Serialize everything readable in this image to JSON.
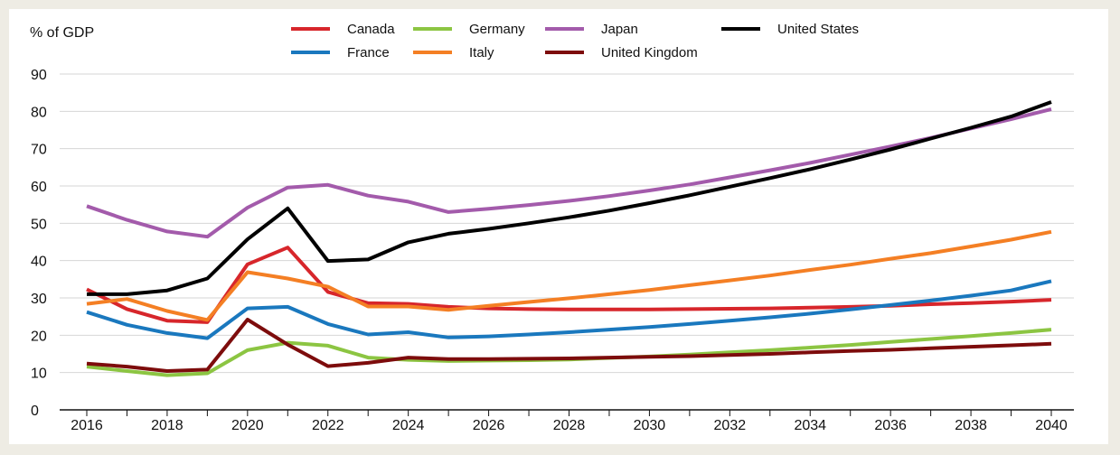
{
  "chart_data": {
    "type": "line",
    "ylabel": "% of GDP",
    "ylim": [
      0,
      90
    ],
    "y_ticks": [
      0,
      10,
      20,
      30,
      40,
      50,
      60,
      70,
      80,
      90
    ],
    "x_ticks": [
      "2016",
      "2018",
      "2020",
      "2022",
      "2024",
      "2026",
      "2028",
      "2030",
      "2032",
      "2034",
      "2036",
      "2038",
      "2040"
    ],
    "grid": "horizontal",
    "legend": "top",
    "x": [
      2016,
      2017,
      2018,
      2019,
      2020,
      2021,
      2022,
      2023,
      2024,
      2025,
      2026,
      2027,
      2028,
      2029,
      2030,
      2031,
      2032,
      2033,
      2034,
      2035,
      2036,
      2037,
      2038,
      2039,
      2040
    ],
    "series": [
      {
        "name": "Canada",
        "color": "#d7262b",
        "values": [
          32.3,
          27.0,
          23.9,
          23.5,
          39.0,
          43.5,
          31.6,
          28.6,
          28.4,
          27.6,
          27.2,
          27.0,
          26.9,
          26.9,
          26.9,
          27.0,
          27.1,
          27.2,
          27.4,
          27.6,
          27.9,
          28.3,
          28.6,
          29.0,
          29.5
        ]
      },
      {
        "name": "France",
        "color": "#1a78be",
        "values": [
          26.2,
          22.8,
          20.6,
          19.2,
          27.2,
          27.6,
          23.0,
          20.2,
          20.8,
          19.4,
          19.7,
          20.2,
          20.8,
          21.5,
          22.2,
          23.0,
          23.9,
          24.8,
          25.8,
          26.9,
          28.1,
          29.3,
          30.6,
          32.0,
          34.5
        ]
      },
      {
        "name": "Germany",
        "color": "#8cc542",
        "values": [
          11.6,
          10.4,
          9.3,
          9.8,
          16.0,
          18.0,
          17.2,
          14.0,
          13.4,
          13.1,
          13.2,
          13.3,
          13.5,
          13.9,
          14.3,
          14.8,
          15.4,
          16.0,
          16.7,
          17.4,
          18.2,
          19.0,
          19.8,
          20.6,
          21.5
        ]
      },
      {
        "name": "Italy",
        "color": "#f47f24",
        "values": [
          28.4,
          29.7,
          26.5,
          24.1,
          36.9,
          35.2,
          33.0,
          27.7,
          27.7,
          26.8,
          27.9,
          28.9,
          29.9,
          31.0,
          32.1,
          33.4,
          34.7,
          36.0,
          37.5,
          38.9,
          40.5,
          42.0,
          43.8,
          45.6,
          47.7
        ]
      },
      {
        "name": "Japan",
        "color": "#a35bab",
        "values": [
          54.6,
          50.9,
          47.8,
          46.4,
          54.2,
          59.6,
          60.3,
          57.4,
          55.8,
          53.0,
          53.9,
          54.9,
          56.0,
          57.3,
          58.8,
          60.4,
          62.3,
          64.2,
          66.2,
          68.4,
          70.6,
          72.9,
          75.4,
          77.9,
          80.6
        ]
      },
      {
        "name": "United Kingdom",
        "color": "#7d0c0c",
        "values": [
          12.4,
          11.6,
          10.4,
          10.8,
          24.2,
          17.5,
          11.7,
          12.6,
          14.0,
          13.6,
          13.6,
          13.7,
          13.8,
          14.0,
          14.2,
          14.4,
          14.7,
          15.0,
          15.4,
          15.8,
          16.1,
          16.5,
          16.9,
          17.3,
          17.7
        ]
      },
      {
        "name": "United States",
        "color": "#000000",
        "values": [
          31.0,
          31.0,
          32.0,
          35.2,
          45.7,
          54.0,
          39.9,
          40.3,
          44.9,
          47.2,
          48.5,
          50.0,
          51.6,
          53.4,
          55.4,
          57.5,
          59.8,
          62.1,
          64.5,
          67.1,
          69.8,
          72.7,
          75.6,
          78.6,
          82.5
        ]
      }
    ]
  }
}
